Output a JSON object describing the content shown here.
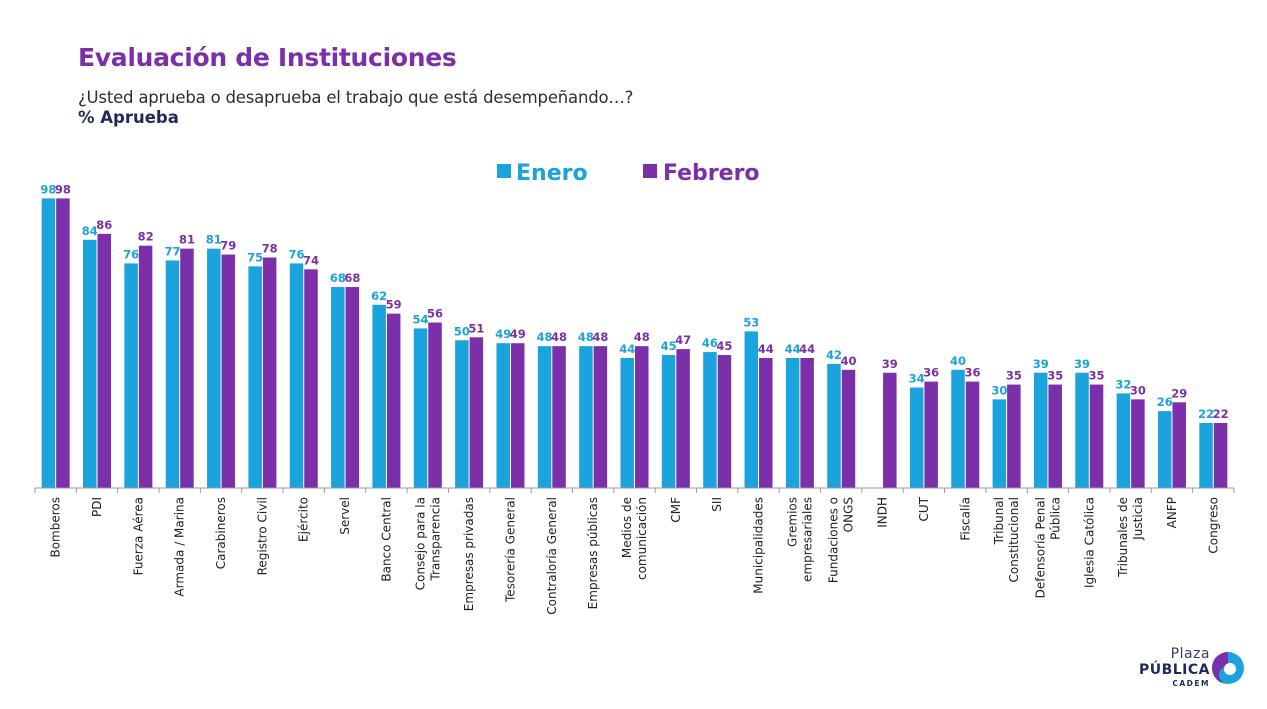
{
  "header": {
    "title": "Evaluación de Instituciones",
    "subtitle": "¿Usted aprueba o desaprueba el trabajo que está desempeñando…?",
    "measure": "% Aprueba"
  },
  "colors": {
    "title": "#7b2fa8",
    "enero": "#1aa3dc",
    "febrero": "#7b2fa8",
    "axis": "#9a9a9a"
  },
  "chart_data": {
    "type": "bar",
    "title": "Evaluación de Instituciones",
    "ylabel": "",
    "xlabel": "",
    "ylim": [
      0,
      100
    ],
    "grid": false,
    "legend_position": "top-center",
    "categories": [
      "Bomberos",
      "PDI",
      "Fuerza Aérea",
      "Armada / Marina",
      "Carabineros",
      "Registro Civil",
      "Ejército",
      "Servel",
      "Banco Central",
      "Consejo para la Transparencia",
      "Empresas privadas",
      "Tesorería General",
      "Contraloría General",
      "Empresas públicas",
      "Medios de comunicación",
      "CMF",
      "SII",
      "Municipalidades",
      "Gremios empresariales",
      "Fundaciones o ONGS",
      "INDH",
      "CUT",
      "Fiscalía",
      "Tribunal Constitucional",
      "Defensoría Penal Pública",
      "Iglesia Católica",
      "Tribunales de Justicia",
      "ANFP",
      "Congreso"
    ],
    "category_lines": [
      [
        "Bomberos"
      ],
      [
        "PDI"
      ],
      [
        "Fuerza Aérea"
      ],
      [
        "Armada / Marina"
      ],
      [
        "Carabineros"
      ],
      [
        "Registro Civil"
      ],
      [
        "Ejército"
      ],
      [
        "Servel"
      ],
      [
        "Banco Central"
      ],
      [
        "Consejo para la",
        "Transparencia"
      ],
      [
        "Empresas privadas"
      ],
      [
        "Tesorería General"
      ],
      [
        "Contraloría General"
      ],
      [
        "Empresas públicas"
      ],
      [
        "Medios de",
        "comunicación"
      ],
      [
        "CMF"
      ],
      [
        "SII"
      ],
      [
        "Municipalidades"
      ],
      [
        "Gremios",
        "empresariales"
      ],
      [
        "Fundaciones o",
        "ONGS"
      ],
      [
        "INDH"
      ],
      [
        "CUT"
      ],
      [
        "Fiscalía"
      ],
      [
        "Tribunal",
        "Constitucional"
      ],
      [
        "Defensoría Penal",
        "Pública"
      ],
      [
        "Iglesia Católica"
      ],
      [
        "Tribunales de",
        "Justicia"
      ],
      [
        "ANFP"
      ],
      [
        "Congreso"
      ]
    ],
    "series": [
      {
        "name": "Enero",
        "values": [
          98,
          84,
          76,
          77,
          81,
          75,
          76,
          68,
          62,
          54,
          50,
          49,
          48,
          48,
          44,
          45,
          46,
          53,
          44,
          42,
          null,
          34,
          40,
          30,
          39,
          39,
          32,
          26,
          22
        ]
      },
      {
        "name": "Febrero",
        "values": [
          98,
          86,
          82,
          81,
          79,
          78,
          74,
          68,
          59,
          56,
          51,
          49,
          48,
          48,
          48,
          47,
          45,
          44,
          44,
          40,
          39,
          36,
          36,
          35,
          35,
          35,
          30,
          29,
          22
        ]
      }
    ]
  },
  "logo": {
    "line1": "Plaza",
    "line2": "PÚBLICA",
    "line3": "CADEM"
  }
}
